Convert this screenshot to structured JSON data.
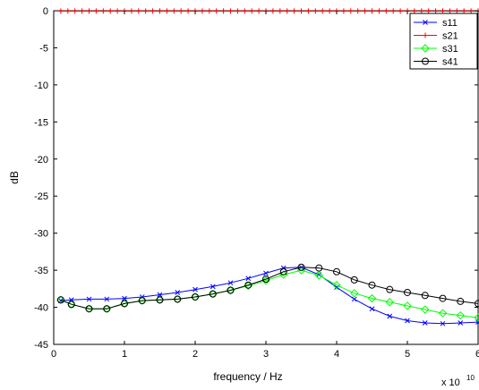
{
  "chart_data": {
    "type": "line",
    "title": "",
    "xlabel": "frequency / Hz",
    "ylabel": "dB",
    "x_exponent": {
      "base": "x 10",
      "power": "10"
    },
    "xlim": [
      0,
      6
    ],
    "ylim": [
      -45,
      0
    ],
    "x_ticks": [
      0,
      1,
      2,
      3,
      4,
      5,
      6
    ],
    "y_ticks": [
      0,
      -5,
      -10,
      -15,
      -20,
      -25,
      -30,
      -35,
      -40,
      -45
    ],
    "grid": false,
    "legend_position": "top-right",
    "series": [
      {
        "name": "s11",
        "color": "#0000ff",
        "marker": "x",
        "points": [
          [
            0.1,
            -39.1
          ],
          [
            0.25,
            -39.0
          ],
          [
            0.5,
            -38.9
          ],
          [
            0.75,
            -38.9
          ],
          [
            1.0,
            -38.8
          ],
          [
            1.25,
            -38.6
          ],
          [
            1.5,
            -38.3
          ],
          [
            1.75,
            -38.0
          ],
          [
            2.0,
            -37.6
          ],
          [
            2.25,
            -37.2
          ],
          [
            2.5,
            -36.7
          ],
          [
            2.75,
            -36.1
          ],
          [
            3.0,
            -35.4
          ],
          [
            3.25,
            -34.7
          ],
          [
            3.5,
            -34.6
          ],
          [
            3.75,
            -35.6
          ],
          [
            4.0,
            -37.3
          ],
          [
            4.25,
            -38.9
          ],
          [
            4.5,
            -40.2
          ],
          [
            4.75,
            -41.2
          ],
          [
            5.0,
            -41.8
          ],
          [
            5.25,
            -42.1
          ],
          [
            5.5,
            -42.2
          ],
          [
            5.75,
            -42.1
          ],
          [
            6.0,
            -42.0
          ]
        ]
      },
      {
        "name": "s21",
        "color": "#ff0000",
        "marker": "+",
        "points": [
          [
            0.1,
            -0.05
          ],
          [
            6.0,
            -0.05
          ]
        ]
      },
      {
        "name": "s31",
        "color": "#00ff00",
        "marker": "diamond",
        "points": [
          [
            0.1,
            -39.0
          ],
          [
            0.25,
            -39.6
          ],
          [
            0.5,
            -40.2
          ],
          [
            0.75,
            -40.2
          ],
          [
            1.0,
            -39.5
          ],
          [
            1.25,
            -39.1
          ],
          [
            1.5,
            -39.0
          ],
          [
            1.75,
            -38.9
          ],
          [
            2.0,
            -38.6
          ],
          [
            2.25,
            -38.2
          ],
          [
            2.5,
            -37.7
          ],
          [
            2.75,
            -37.1
          ],
          [
            3.0,
            -36.4
          ],
          [
            3.25,
            -35.6
          ],
          [
            3.5,
            -35.0
          ],
          [
            3.75,
            -35.7
          ],
          [
            4.0,
            -37.0
          ],
          [
            4.25,
            -38.1
          ],
          [
            4.5,
            -38.8
          ],
          [
            4.75,
            -39.3
          ],
          [
            5.0,
            -39.8
          ],
          [
            5.25,
            -40.3
          ],
          [
            5.5,
            -40.8
          ],
          [
            5.75,
            -41.1
          ],
          [
            6.0,
            -41.4
          ]
        ]
      },
      {
        "name": "s41",
        "color": "#000000",
        "marker": "o",
        "points": [
          [
            0.1,
            -39.0
          ],
          [
            0.25,
            -39.6
          ],
          [
            0.5,
            -40.2
          ],
          [
            0.75,
            -40.2
          ],
          [
            1.0,
            -39.5
          ],
          [
            1.25,
            -39.1
          ],
          [
            1.5,
            -39.0
          ],
          [
            1.75,
            -38.9
          ],
          [
            2.0,
            -38.6
          ],
          [
            2.25,
            -38.2
          ],
          [
            2.5,
            -37.7
          ],
          [
            2.75,
            -37.0
          ],
          [
            3.0,
            -36.2
          ],
          [
            3.25,
            -35.2
          ],
          [
            3.5,
            -34.6
          ],
          [
            3.75,
            -34.7
          ],
          [
            4.0,
            -35.2
          ],
          [
            4.25,
            -36.3
          ],
          [
            4.5,
            -37.0
          ],
          [
            4.75,
            -37.6
          ],
          [
            5.0,
            -38.0
          ],
          [
            5.25,
            -38.4
          ],
          [
            5.5,
            -38.8
          ],
          [
            5.75,
            -39.2
          ],
          [
            6.0,
            -39.5
          ]
        ]
      }
    ]
  }
}
